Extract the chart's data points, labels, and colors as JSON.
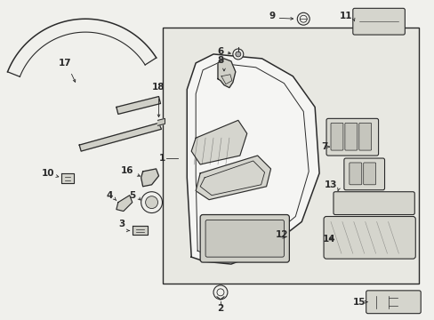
{
  "bg_color": "#f0f0ec",
  "line_color": "#2a2a2a",
  "box_bg": "#e8e8e2",
  "fig_width": 4.89,
  "fig_height": 3.6,
  "dpi": 100
}
